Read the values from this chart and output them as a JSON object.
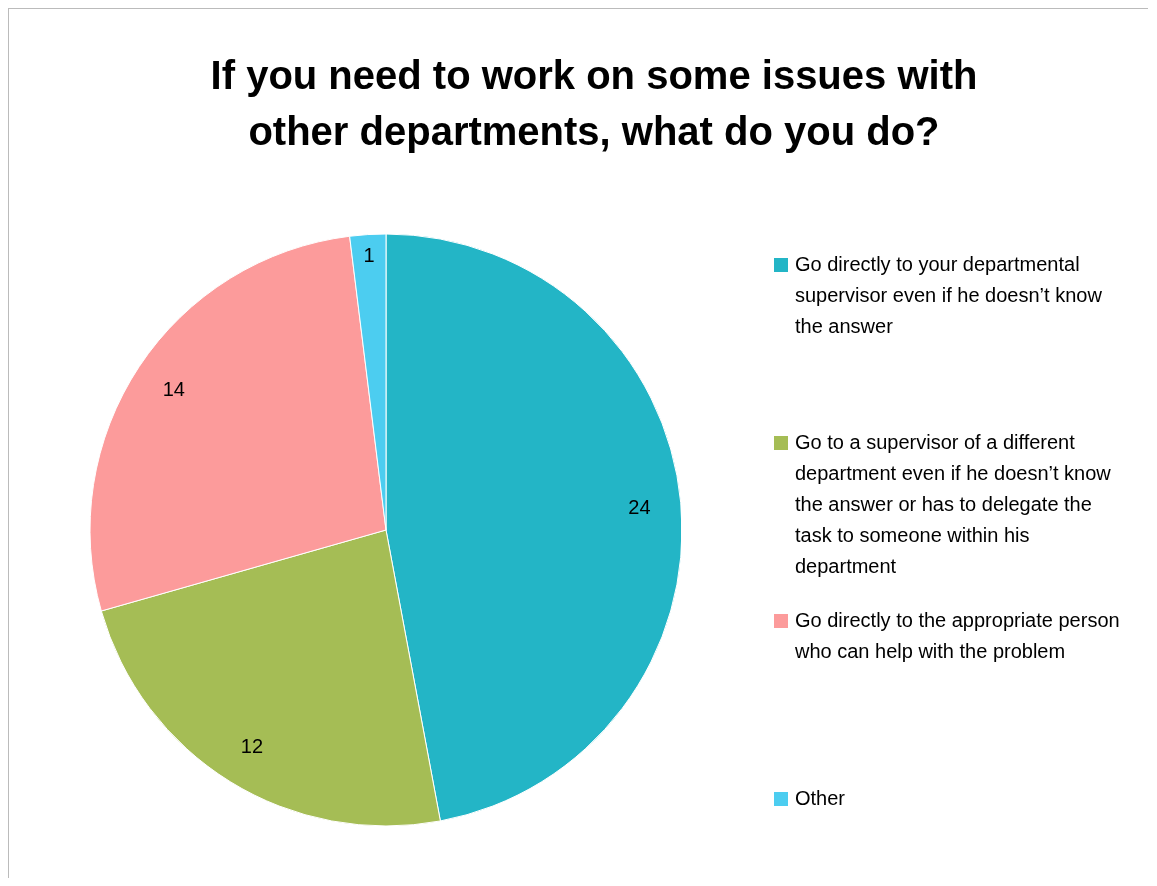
{
  "chart_data": {
    "type": "pie",
    "title": "If you need to work on some issues with other departments, what do you do?",
    "categories": [
      "Go directly to your departmental supervisor even if he doesn’t know the answer",
      "Go to a supervisor of a different department even if he doesn’t know the answer or has to delegate the task to someone within his department",
      "Go directly to the appropriate person who can help with the problem",
      "Other"
    ],
    "values": [
      24,
      12,
      14,
      1
    ],
    "colors": [
      "#23b5c6",
      "#a5bd55",
      "#fc9b9b",
      "#4ccdf0"
    ],
    "data_labels": true,
    "legend": "right"
  }
}
